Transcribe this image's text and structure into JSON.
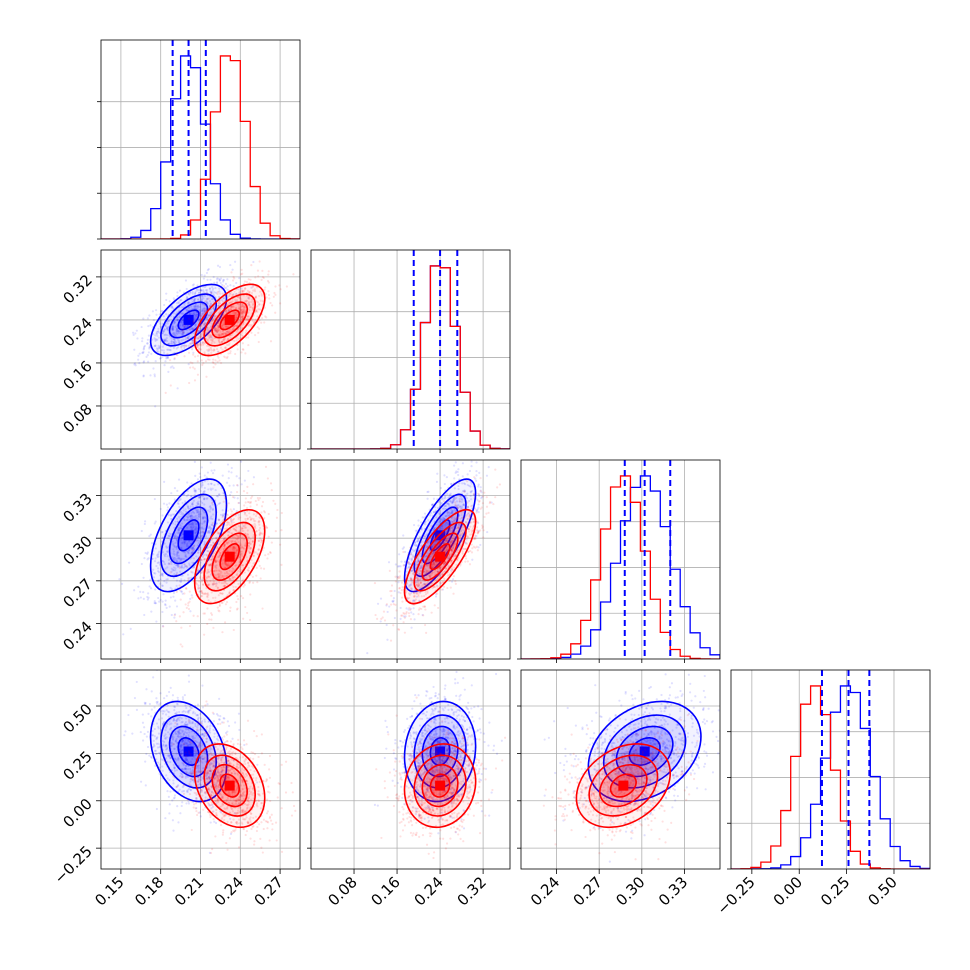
{
  "chart_data": {
    "type": "corner",
    "n_params": 4,
    "series": [
      {
        "color": "#0000ff",
        "mean": [
          0.201,
          0.24,
          0.302,
          0.26
        ],
        "sd": [
          0.013,
          0.03,
          0.018,
          0.12
        ],
        "quantiles": [
          [
            0.189,
            0.201,
            0.214
          ],
          [
            0.191,
            0.24,
            0.272
          ],
          [
            0.288,
            0.302,
            0.32
          ],
          [
            0.12,
            0.26,
            0.37
          ]
        ]
      },
      {
        "color": "#ff0000",
        "mean": [
          0.232,
          0.24,
          0.287,
          0.08
        ],
        "sd": [
          0.012,
          0.03,
          0.015,
          0.1
        ]
      }
    ],
    "ranges": [
      [
        0.135,
        0.285
      ],
      [
        0.0,
        0.37
      ],
      [
        0.215,
        0.355
      ],
      [
        -0.36,
        0.69
      ]
    ],
    "ticks": [
      [
        "0.15",
        "0.18",
        "0.21",
        "0.24",
        "0.27"
      ],
      [
        "0.08",
        "0.16",
        "0.24",
        "0.32"
      ],
      [
        "0.24",
        "0.27",
        "0.30",
        "0.33"
      ],
      [
        "−0.25",
        "0.00",
        "0.25",
        "0.50"
      ]
    ],
    "tick_values": [
      [
        0.15,
        0.18,
        0.21,
        0.24,
        0.27
      ],
      [
        0.08,
        0.16,
        0.24,
        0.32
      ],
      [
        0.24,
        0.27,
        0.3,
        0.33
      ],
      [
        -0.25,
        0.0,
        0.25,
        0.5
      ]
    ],
    "correlations": [
      [
        null,
        null,
        null,
        null
      ],
      [
        0.6,
        null,
        null,
        null
      ],
      [
        0.55,
        0.75,
        null,
        null
      ],
      [
        -0.3,
        0.1,
        0.3,
        null
      ]
    ],
    "grid": true
  }
}
